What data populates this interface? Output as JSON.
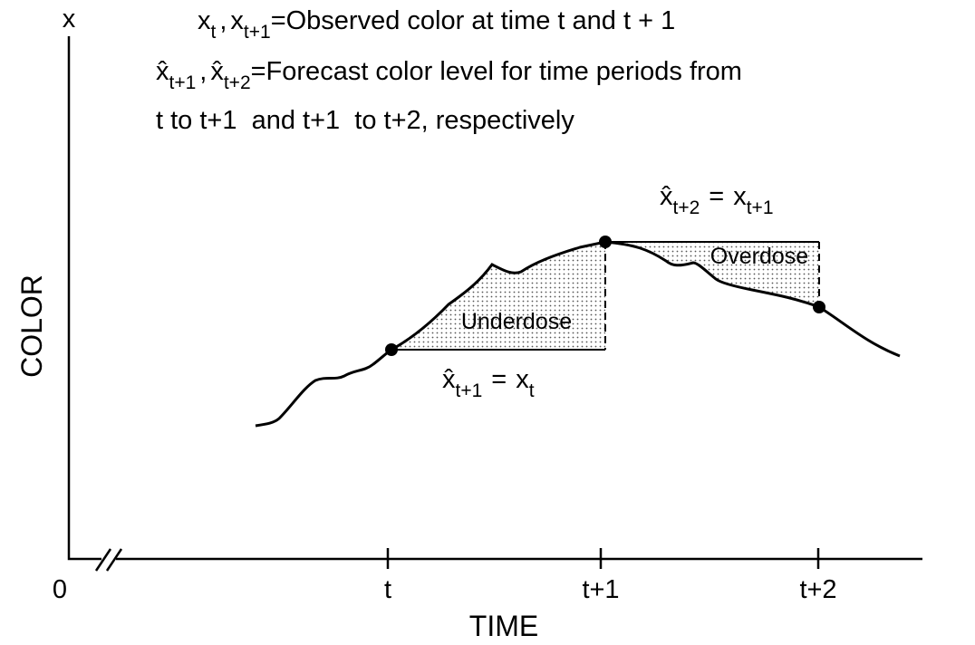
{
  "axes": {
    "y_symbol": "x",
    "y_label": "COLOR",
    "x_label": "TIME",
    "origin": "0",
    "x_ticks": [
      "t",
      "t+1",
      "t+2"
    ]
  },
  "legend": [
    {
      "base": "x",
      "sub": "t",
      "sep": ",",
      "base2": "x",
      "sub2": "t+1",
      "definition": "=Observed color at time t and t + 1"
    },
    {
      "base": "x̂",
      "sub": "t+1",
      "sep": ",",
      "base2": "x̂",
      "sub2": "t+2",
      "definition": "=Forecast color level for time periods from",
      "continuation": "t to t+1  and t+1  to t+2, respectively"
    }
  ],
  "regions": {
    "underdose": "Underdose",
    "overdose": "Overdose"
  },
  "equations": [
    {
      "lhs": "x̂",
      "lhs_sub": "t+1",
      "eq": "=",
      "rhs": "x",
      "rhs_sub": "t"
    },
    {
      "lhs": "x̂",
      "lhs_sub": "t+2",
      "eq": "=",
      "rhs": "x",
      "rhs_sub": "t+1"
    }
  ]
}
